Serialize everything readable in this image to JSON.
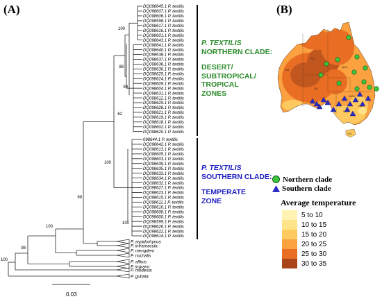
{
  "panel_a_label": "(A)",
  "panel_b_label": "(B)",
  "northern_tips": [
    "DQ098645.1 P. textilis",
    "DQ098607.1 P. textilis",
    "DQ098606.1 P. textilis",
    "DQ098598.1 P. textilis",
    "DQ098617.1 P. textilis",
    "DQ098616.1 P. textilis",
    "DQ098601.1 P. textilis",
    "DQ098643.1 P. textilis",
    "DQ098641.1 P. textilis",
    "DQ098640.1 P. textilis",
    "DQ098638.1 P. textilis",
    "DQ098637.1 P. textilis",
    "DQ098636.1 P. textilis",
    "DQ098630.1 P. textilis",
    "DQ098625.1 P. textilis",
    "DQ098624.1 P. textilis",
    "DQ098609.1 P. textilis",
    "DQ098604.1 P. textilis",
    "DQ098631.1 P. textilis",
    "DQ098612.1 P. textilis",
    "DQ098629.1 P. textilis",
    "DQ098628.1 P. textilis",
    "DQ098621.1 P. textilis",
    "DQ098619.1 P. textilis",
    "DQ098618.1 P. textilis",
    "DQ098602.1 P. textilis",
    "DQ098620.1 P. textilis"
  ],
  "southern_tips": [
    "098644.1 P. textilis",
    "DQ098642.1 P. textilis",
    "DQ098613.1 P. textilis",
    "DQ098605.1 P. textilis",
    "DQ098603.1 P. textilis",
    "DQ098639.1 P. textilis",
    "DQ098635.1 P. textilis",
    "DQ098633.1 P. textilis",
    "DQ098634.1 P. textilis",
    "DQ098632.1 P. textilis",
    "DQ098627.1 P. textilis",
    "DQ098623.1 P. textilis",
    "DQ098615.1 P. textilis",
    "DQ098611.1 P. textilis",
    "DQ098610.1 P. textilis",
    "DQ098608.1 P. textilis",
    "DQ098600.1 P. textilis",
    "DQ098599.1 P. textilis",
    "DQ098626.1 P. textilis",
    "DQ098622.1 P. textilis",
    "DQ098614.1 P. textilis"
  ],
  "outgroups": [
    "P. aspidorhynca",
    "P. inframacula",
    "P. mengdeni",
    "P. nuchalis",
    "P. affinis",
    "P. ingrami",
    "P. modesta",
    "P. guttata"
  ],
  "bootstrap": [
    "100",
    "88",
    "59",
    "62",
    "100",
    "99",
    "100",
    "100",
    "98",
    "100"
  ],
  "scale_label": "0.03",
  "northern_clade_text": [
    "P. TEXTILIS",
    "NORTHERN CLADE:",
    "DESERT/",
    "SUBTROPICAL/",
    "TROPICAL",
    "ZONES"
  ],
  "southern_clade_text": [
    "P. TEXTILIS",
    "SOUTHERN CLADE:",
    "TEMPERATE",
    "ZONE"
  ],
  "map_regions": [
    "WA",
    "NT",
    "QLD",
    "SA",
    "NSW",
    "VIC",
    "ACT",
    "TAS"
  ],
  "legend_markers": {
    "northern": "Northern clade",
    "southern": "Southern clade"
  },
  "temperature_legend": {
    "title": "Average temperature",
    "bins": [
      {
        "label": "5 to 10",
        "color": "#fff2b3"
      },
      {
        "label": "10 to 15",
        "color": "#fee489"
      },
      {
        "label": "15 to 20",
        "color": "#fec95f"
      },
      {
        "label": "20 to 25",
        "color": "#fba140"
      },
      {
        "label": "25 to 30",
        "color": "#e96e24"
      },
      {
        "label": "30 to 35",
        "color": "#a9441b"
      }
    ]
  },
  "colors": {
    "northern_text": "#2a8a2a",
    "southern_text": "#1f1fc4",
    "northern_marker": "#3cc63c",
    "southern_marker": "#2b2bc8"
  }
}
